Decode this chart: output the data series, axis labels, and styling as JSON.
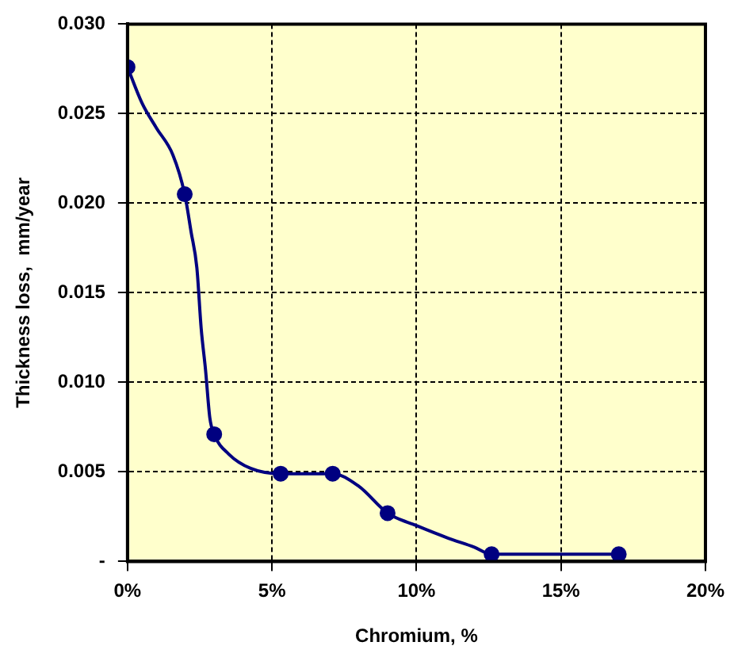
{
  "chart_data": {
    "type": "line",
    "xlabel": "Chromium, %",
    "ylabel": "Thickness loss,  mm/year",
    "xlim": [
      0,
      20
    ],
    "xticks": [
      {
        "value": 0,
        "label": "0%"
      },
      {
        "value": 5,
        "label": "5%"
      },
      {
        "value": 10,
        "label": "10%"
      },
      {
        "value": 15,
        "label": "15%"
      },
      {
        "value": 20,
        "label": "20%"
      }
    ],
    "ylim": [
      0,
      0.03
    ],
    "yticks": [
      {
        "value": 0,
        "label": "-"
      },
      {
        "value": 0.005,
        "label": "0.005"
      },
      {
        "value": 0.01,
        "label": "0.010"
      },
      {
        "value": 0.015,
        "label": "0.015"
      },
      {
        "value": 0.02,
        "label": "0.020"
      },
      {
        "value": 0.025,
        "label": "0.025"
      },
      {
        "value": 0.03,
        "label": "0.030"
      }
    ],
    "grid": true,
    "legend": false,
    "series": [
      {
        "type": "line",
        "marker": "none",
        "line_style": "solid",
        "color": "#000080",
        "x": [
          0,
          0.5,
          1.0,
          1.57,
          1.98,
          2.2,
          2.4,
          2.55,
          2.7,
          2.85,
          3.0,
          3.5,
          4.26,
          5.3,
          6.3,
          7.1,
          8.0,
          9.0,
          10.0,
          11.1,
          12.0,
          12.6,
          17.0
        ],
        "values": [
          0.0276,
          0.0256,
          0.0242,
          0.0227,
          0.0205,
          0.0184,
          0.0164,
          0.013,
          0.0107,
          0.008,
          0.0071,
          0.006,
          0.0052,
          0.0049,
          0.0049,
          0.0049,
          0.0042,
          0.0027,
          0.002,
          0.0013,
          0.0008,
          0.0004,
          0.0004
        ]
      },
      {
        "type": "scatter",
        "marker": "circle",
        "color": "#000080",
        "x": [
          0,
          1.98,
          3.0,
          5.3,
          7.1,
          9.0,
          12.6,
          17.0
        ],
        "values": [
          0.0276,
          0.0205,
          0.0071,
          0.0049,
          0.0049,
          0.0027,
          0.0004,
          0.0004
        ]
      }
    ]
  }
}
